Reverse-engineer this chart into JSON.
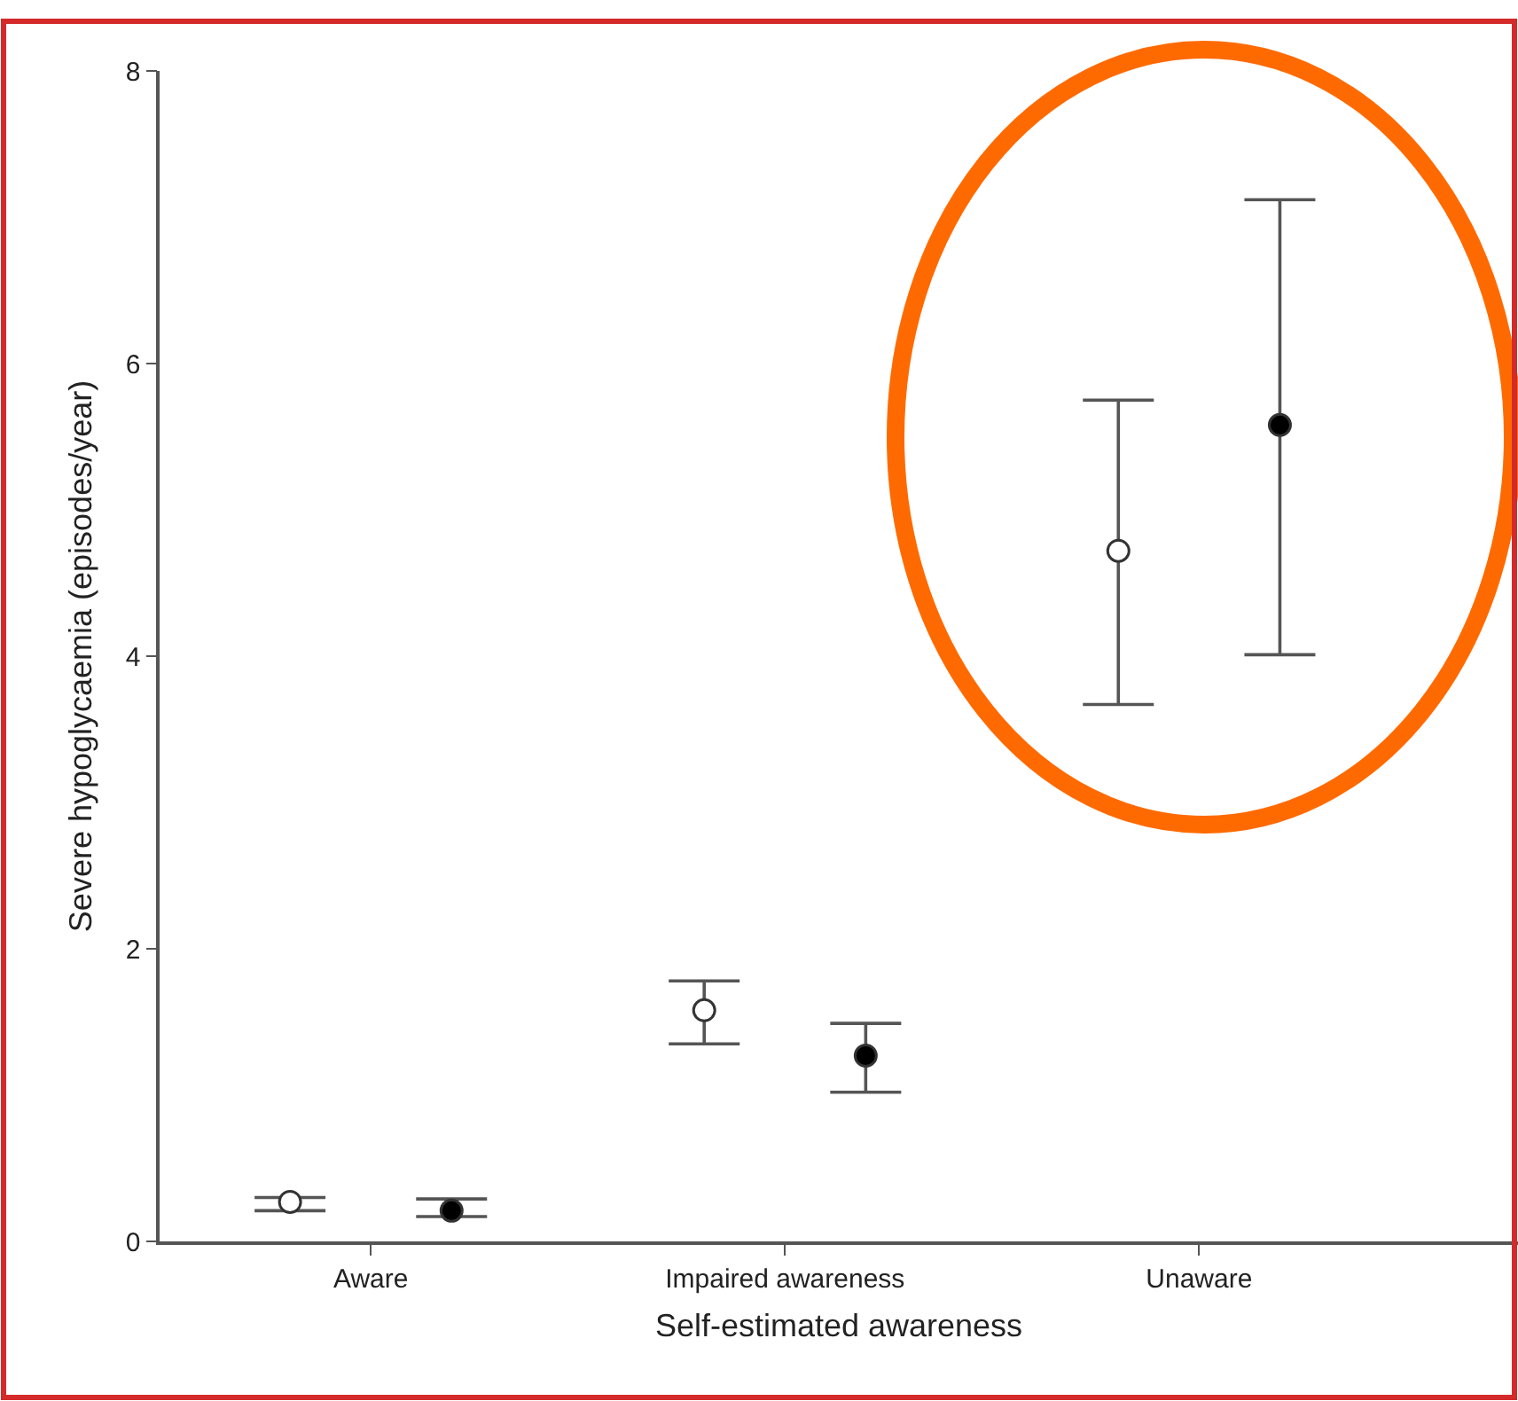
{
  "chart_data": {
    "type": "scatter",
    "xlabel": "Self-estimated awareness",
    "ylabel": "Severe hypoglycaemia (episodes/year)",
    "categories": [
      "Aware",
      "Impaired awareness",
      "Unaware"
    ],
    "series": [
      {
        "color": "#ffffff",
        "values": [
          0.27,
          1.58,
          4.72
        ],
        "errors": [
          [
            0.21,
            0.3
          ],
          [
            1.35,
            1.78
          ],
          [
            3.67,
            5.75
          ]
        ]
      },
      {
        "color": "#000000",
        "values": [
          0.21,
          1.27,
          5.58
        ],
        "errors": [
          [
            0.17,
            0.29
          ],
          [
            1.02,
            1.49
          ],
          [
            4.01,
            7.12
          ]
        ]
      }
    ],
    "ylim": [
      0,
      8
    ],
    "yticks": [
      0,
      2,
      4,
      6,
      8
    ],
    "marker": "circle"
  }
}
